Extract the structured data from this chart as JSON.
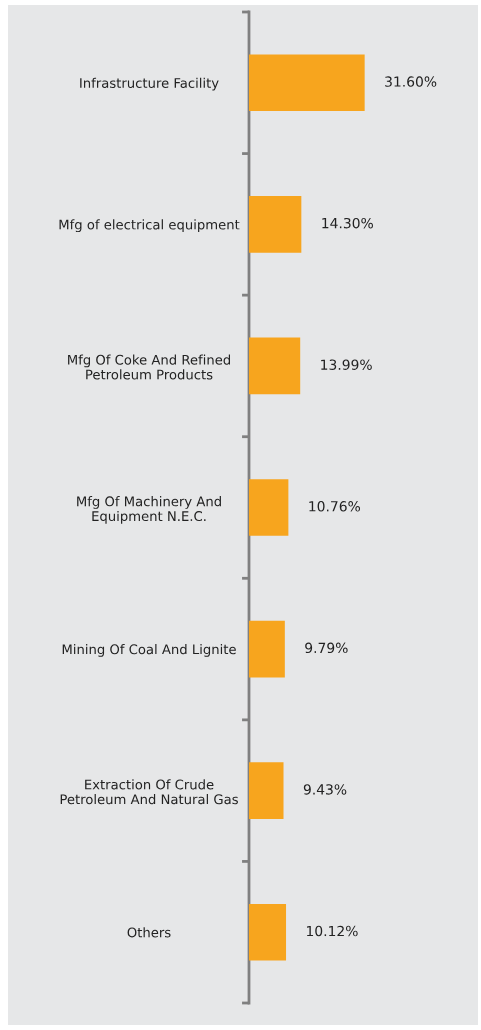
{
  "chart_data": {
    "type": "bar",
    "orientation": "horizontal",
    "categories": [
      "Infrastructure Facility",
      "Mfg of electrical equipment",
      "Mfg Of Coke And Refined\nPetroleum Products",
      "Mfg Of Machinery And\nEquipment N.E.C.",
      "Mining Of Coal And Lignite",
      "Extraction Of Crude\nPetroleum And Natural Gas",
      "Others"
    ],
    "values": [
      31.6,
      14.3,
      13.99,
      10.76,
      9.79,
      9.43,
      10.12
    ],
    "value_labels": [
      "31.60%",
      "14.30%",
      "13.99%",
      "10.76%",
      "9.79%",
      "9.43%",
      "10.12%"
    ],
    "color": "#f7a51e",
    "grid": false,
    "legend": false,
    "tick_labels": "y"
  }
}
